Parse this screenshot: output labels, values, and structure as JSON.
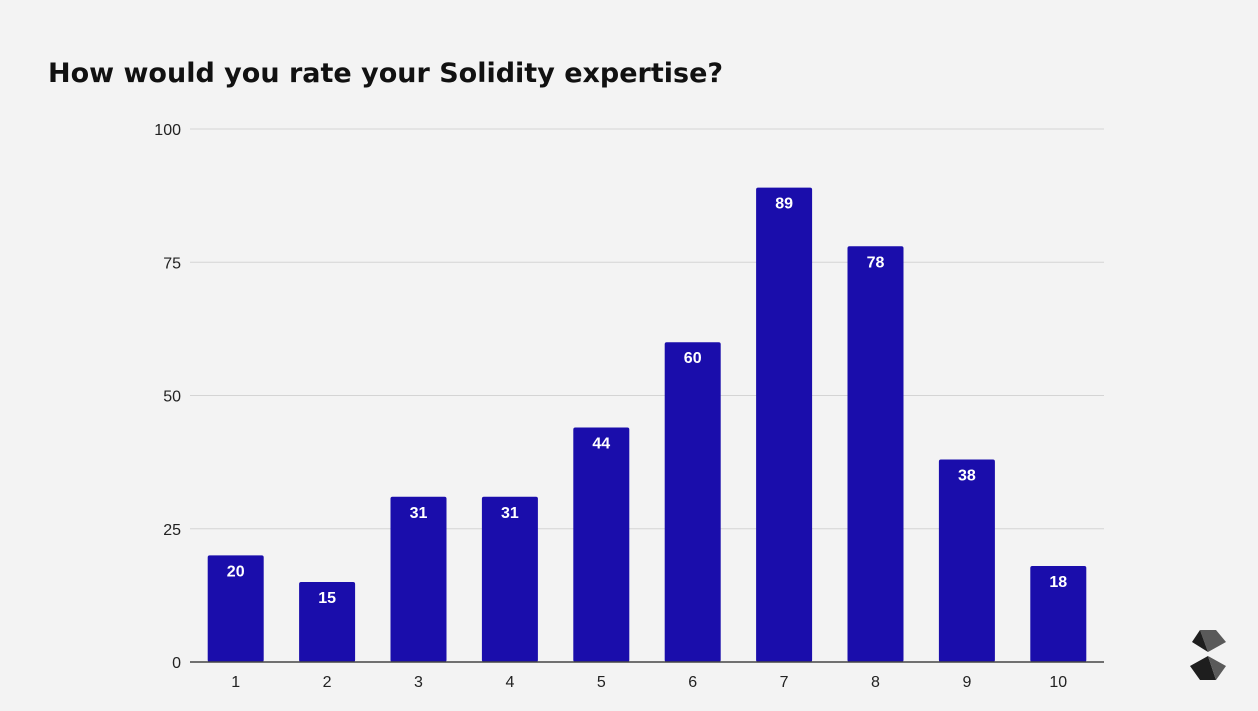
{
  "chart_data": {
    "type": "bar",
    "title": "How would you rate your Solidity expertise?",
    "xlabel": "",
    "ylabel": "",
    "categories": [
      "1",
      "2",
      "3",
      "4",
      "5",
      "6",
      "7",
      "8",
      "9",
      "10"
    ],
    "values": [
      20,
      15,
      31,
      31,
      44,
      60,
      89,
      78,
      38,
      18
    ],
    "ylim": [
      0,
      100
    ],
    "yticks": [
      "0",
      "25",
      "50",
      "75",
      "100"
    ],
    "grid": true,
    "legend": "none",
    "bar_color": "#1a0dab"
  },
  "logo_icon": "solidity-logo-icon"
}
